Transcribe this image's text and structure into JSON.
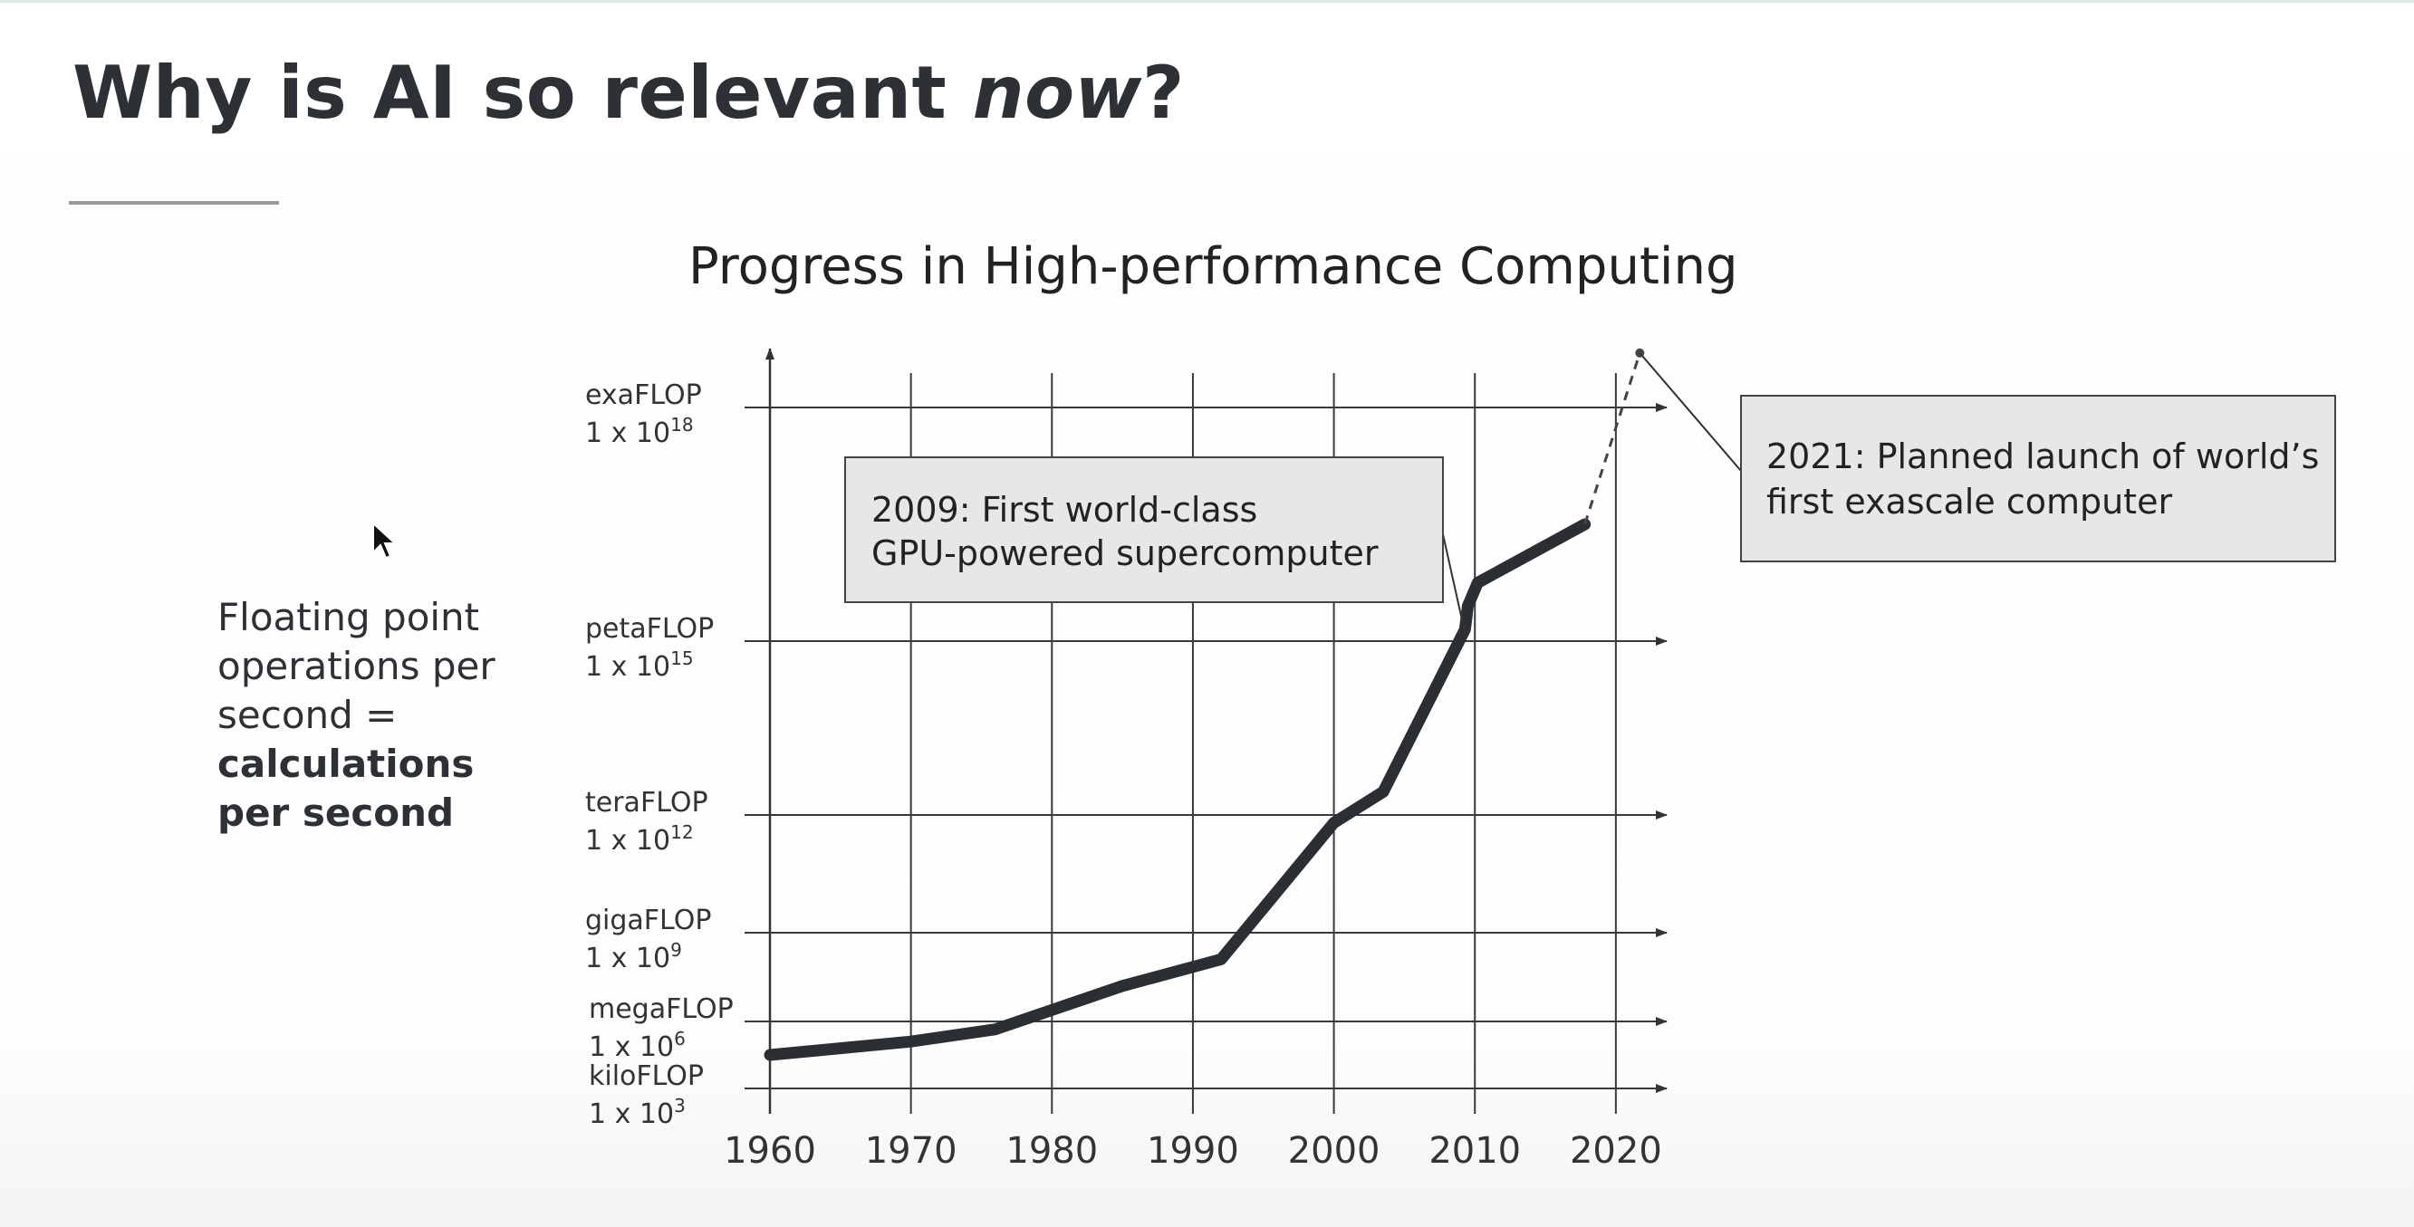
{
  "slide": {
    "title_main": "Why is AI so relevant ",
    "title_em": "now",
    "title_end": "?",
    "side_note": {
      "line1": "Floating point",
      "line2": "operations per",
      "line3": "second =",
      "bold1": "calculations",
      "bold2": "per second"
    }
  },
  "chart_data": {
    "type": "line",
    "title": "Progress in High-performance Computing",
    "x_ticks": [
      1960,
      1970,
      1980,
      1990,
      2000,
      2010,
      2020
    ],
    "xlim": [
      1960,
      2022
    ],
    "y_levels": [
      {
        "name": "kiloFLOP",
        "sci": "1 x 10",
        "exp": "3",
        "value": 3
      },
      {
        "name": "megaFLOP",
        "sci": "1 x 10",
        "exp": "6",
        "value": 6
      },
      {
        "name": "gigaFLOP",
        "sci": "1 x 10",
        "exp": "9",
        "value": 9
      },
      {
        "name": "teraFLOP",
        "sci": "1 x 10",
        "exp": "12",
        "value": 12
      },
      {
        "name": "petaFLOP",
        "sci": "1 x 10",
        "exp": "15",
        "value": 15
      },
      {
        "name": "exaFLOP",
        "sci": "1 x 10",
        "exp": "18",
        "value": 18
      }
    ],
    "series": [
      {
        "x": [
          1960,
          1970,
          1976,
          1985,
          1992,
          2000,
          2003.5,
          2009.3,
          2009.5,
          2010.2,
          2017.8
        ],
        "y": [
          4.5,
          5.1,
          5.65,
          7.2,
          8.1,
          11.8,
          12.4,
          15.15,
          15.45,
          15.75,
          16.5
        ]
      }
    ],
    "projection": {
      "x": [
        2017.8,
        2021.7
      ],
      "y": [
        16.5,
        18.7
      ]
    },
    "annotations": [
      {
        "text1": "2009: First world-class",
        "text2": "GPU-powered supercomputer",
        "x": 2009.3,
        "y": 15.1
      },
      {
        "text1": "2021: Planned launch of world’s",
        "text2": "first exascale computer",
        "x": 2021.7,
        "y": 18.7
      }
    ]
  }
}
